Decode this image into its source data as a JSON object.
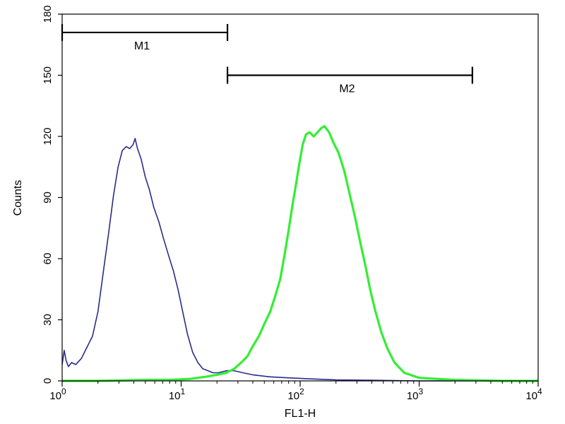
{
  "chart_data": {
    "type": "line",
    "title": "",
    "xlabel": "FL1-H",
    "ylabel": "Counts",
    "x_scale": "log",
    "xlim": [
      1,
      10000
    ],
    "ylim": [
      0,
      180
    ],
    "grid": false,
    "legend": "none",
    "x_ticks": [
      {
        "value": 1,
        "label": "10",
        "exp": "0"
      },
      {
        "value": 10,
        "label": "10",
        "exp": "1"
      },
      {
        "value": 100,
        "label": "10",
        "exp": "2"
      },
      {
        "value": 1000,
        "label": "10",
        "exp": "3"
      },
      {
        "value": 10000,
        "label": "10",
        "exp": "4"
      }
    ],
    "y_ticks": [
      {
        "value": 0,
        "label": "0"
      },
      {
        "value": 30,
        "label": "30"
      },
      {
        "value": 60,
        "label": "60"
      },
      {
        "value": 90,
        "label": "90"
      },
      {
        "value": 120,
        "label": "120"
      },
      {
        "value": 150,
        "label": "150"
      },
      {
        "value": 180,
        "label": "180"
      }
    ],
    "markers": [
      {
        "label": "M1",
        "x_start": 1,
        "x_end": 24.5,
        "y": 171
      },
      {
        "label": "M2",
        "x_start": 24.5,
        "x_end": 2800,
        "y": 150
      }
    ],
    "series": [
      {
        "color": "#2b2b8c",
        "width": 1.6,
        "x": [
          1,
          1.04,
          1.08,
          1.13,
          1.2,
          1.3,
          1.45,
          1.6,
          1.8,
          2.0,
          2.2,
          2.45,
          2.7,
          2.95,
          3.2,
          3.45,
          3.7,
          3.95,
          4.1,
          4.3,
          4.6,
          5.0,
          5.4,
          5.9,
          6.5,
          7.1,
          7.8,
          8.6,
          9.4,
          10.3,
          11.3,
          12.5,
          13.8,
          15.2,
          16.8,
          18.5,
          20.5,
          24,
          28,
          33,
          40,
          55,
          80,
          120,
          200,
          400,
          1000,
          10000
        ],
        "y": [
          8,
          15,
          10,
          7,
          9,
          8,
          11,
          16,
          22,
          34,
          52,
          72,
          91,
          105,
          113,
          115,
          114,
          116,
          119,
          114,
          109,
          100,
          94,
          85,
          78,
          70,
          62,
          54,
          45,
          34,
          23,
          14,
          9,
          6,
          5,
          4,
          4,
          5,
          5,
          4,
          3,
          2,
          1.5,
          1,
          0.5,
          0.3,
          0,
          0
        ]
      },
      {
        "color": "#33ee33",
        "width": 3.2,
        "x": [
          1,
          2,
          5,
          8,
          12,
          16,
          20,
          24,
          28,
          32,
          36,
          40,
          45,
          50,
          56,
          62,
          68,
          74,
          80,
          86,
          92,
          98,
          105,
          112,
          120,
          130,
          140,
          150,
          160,
          175,
          190,
          210,
          235,
          260,
          290,
          320,
          355,
          390,
          430,
          480,
          540,
          620,
          750,
          1000,
          1400,
          2000,
          5000,
          10000
        ],
        "y": [
          0,
          0,
          0.5,
          0.5,
          1,
          2,
          3,
          4,
          6,
          9,
          12,
          17,
          22,
          28,
          34,
          42,
          50,
          62,
          74,
          86,
          96,
          106,
          116,
          121,
          122,
          120,
          122,
          124,
          125,
          122,
          117,
          112,
          103,
          92,
          80,
          68,
          56,
          44,
          34,
          24,
          16,
          9,
          4,
          1.5,
          1,
          0.5,
          0,
          0
        ]
      }
    ]
  }
}
